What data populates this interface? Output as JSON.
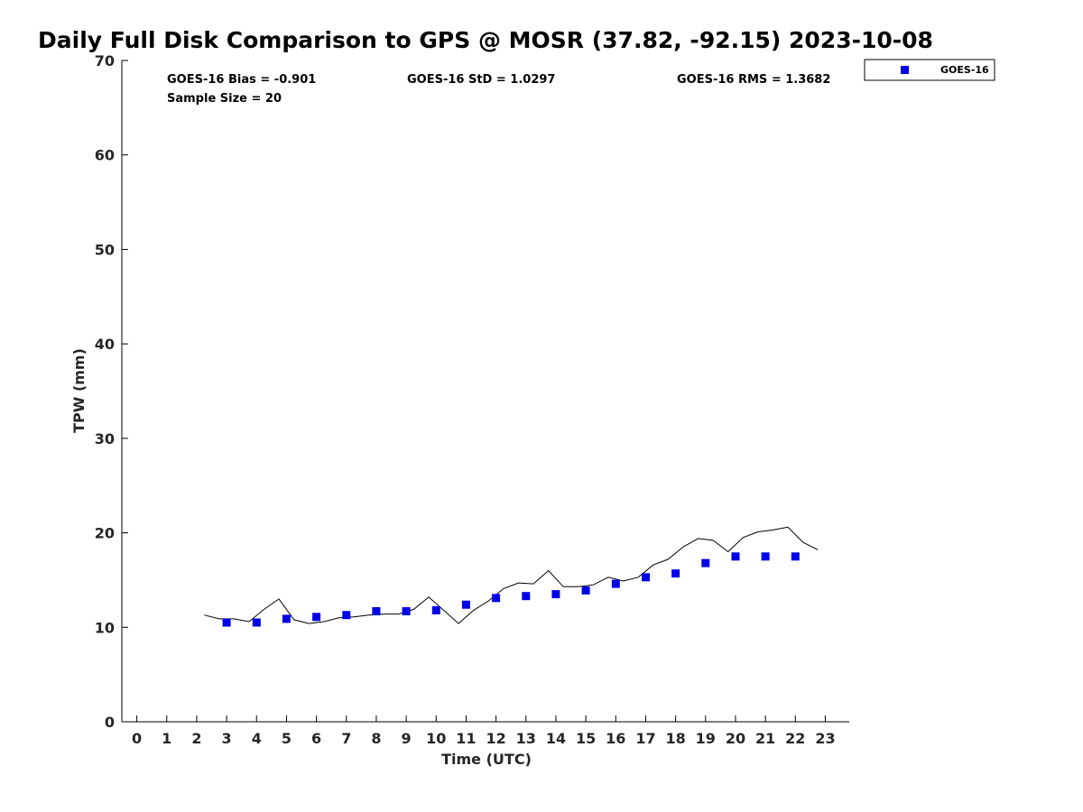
{
  "chart_data": {
    "type": "scatter",
    "title": "Daily Full Disk Comparison to GPS @ MOSR (37.82, -92.15) 2023-10-08",
    "xlabel": "Time (UTC)",
    "ylabel": "TPW (mm)",
    "xlim": [
      -0.5,
      23.8
    ],
    "ylim": [
      0,
      70
    ],
    "xticks": [
      0,
      1,
      2,
      3,
      4,
      5,
      6,
      7,
      8,
      9,
      10,
      11,
      12,
      13,
      14,
      15,
      16,
      17,
      18,
      19,
      20,
      21,
      22,
      23
    ],
    "yticks": [
      0,
      10,
      20,
      30,
      40,
      50,
      60,
      70
    ],
    "grid": false,
    "legend_position": "top-right outside",
    "stats": {
      "bias": "GOES-16 Bias = -0.901",
      "std": "GOES-16 StD = 1.0297",
      "rms": "GOES-16 RMS = 1.3682",
      "sample": "Sample Size = 20"
    },
    "series": [
      {
        "name": "GOES-16",
        "style": "markers",
        "color": "#0000e6",
        "x": [
          3,
          4,
          5,
          6,
          7,
          8,
          9,
          10,
          11,
          12,
          13,
          14,
          15,
          16,
          17,
          18,
          19,
          20,
          21,
          22
        ],
        "y": [
          10.5,
          10.5,
          10.9,
          11.1,
          11.3,
          11.7,
          11.7,
          11.8,
          12.4,
          13.1,
          13.3,
          13.5,
          13.9,
          14.6,
          15.3,
          15.7,
          16.8,
          17.5,
          17.5,
          17.5
        ]
      },
      {
        "style": "line",
        "color": "#000000",
        "x": [
          2.25,
          2.75,
          3.25,
          3.75,
          4.25,
          4.75,
          5.25,
          5.75,
          6.25,
          6.75,
          7.25,
          7.75,
          8.25,
          8.75,
          9.25,
          9.75,
          10.25,
          10.75,
          11.25,
          11.75,
          12.25,
          12.75,
          13.25,
          13.75,
          14.25,
          14.75,
          15.25,
          15.75,
          16.25,
          16.75,
          17.25,
          17.75,
          18.25,
          18.75,
          19.25,
          19.75,
          20.25,
          20.75,
          21.25,
          21.75,
          22.25,
          22.75
        ],
        "y": [
          11.3,
          10.9,
          10.9,
          10.6,
          11.9,
          13.0,
          10.8,
          10.4,
          10.6,
          11.0,
          11.1,
          11.3,
          11.4,
          11.4,
          11.9,
          13.2,
          11.8,
          10.4,
          11.8,
          12.8,
          14.1,
          14.7,
          14.6,
          16.0,
          14.3,
          14.3,
          14.5,
          15.3,
          14.9,
          15.3,
          16.6,
          17.2,
          18.5,
          19.4,
          19.2,
          18.0,
          19.5,
          20.1,
          20.3,
          20.6,
          19.0,
          18.2
        ]
      }
    ]
  }
}
